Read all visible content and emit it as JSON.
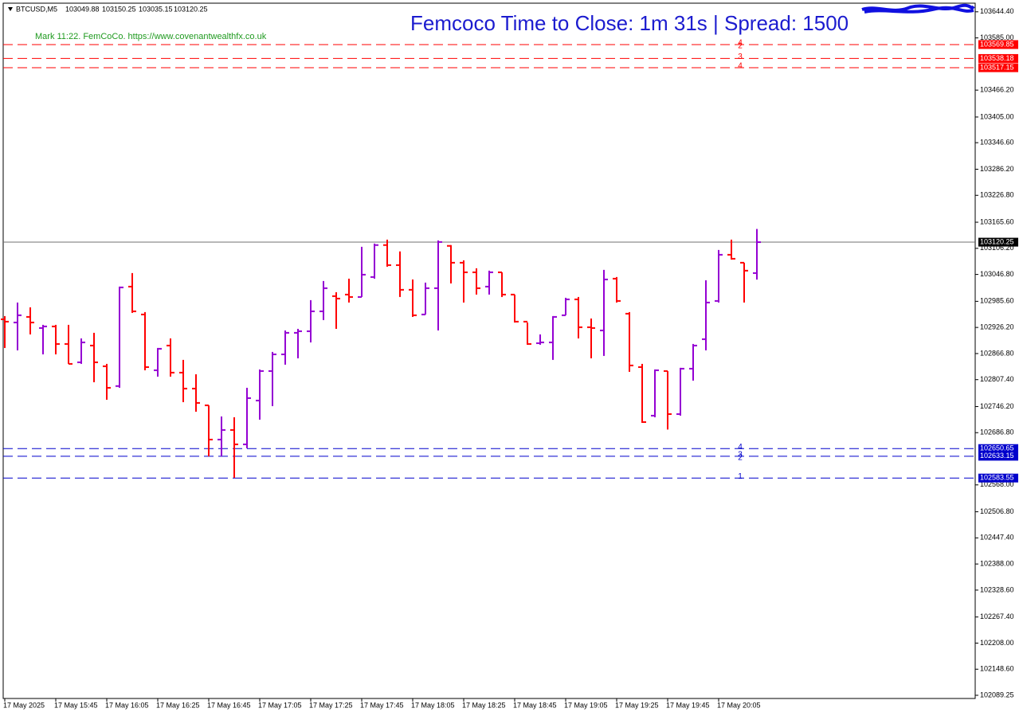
{
  "chart_data": {
    "type": "ohlc",
    "symbol": "BTCUSD,M5",
    "title": "Femcoco Time to Close: 1m 31s | Spread: 1500",
    "annotation": "Mark 11:22. FemCoCo. https://www.covenantwealthfx.co.uk",
    "up_color": "#9400d3",
    "down_color": "#ff0000",
    "categories": [
      "17 May 2025",
      null,
      null,
      null,
      "17 May 15:45",
      null,
      null,
      null,
      "17 May 16:05",
      null,
      null,
      null,
      "17 May 16:25",
      null,
      null,
      null,
      "17 May 16:45",
      null,
      null,
      null,
      "17 May 17:05",
      null,
      null,
      null,
      "17 May 17:25",
      null,
      null,
      null,
      "17 May 17:45",
      null,
      null,
      null,
      "17 May 18:05",
      null,
      null,
      null,
      "17 May 18:25",
      null,
      null,
      null,
      "17 May 18:45",
      null,
      null,
      null,
      "17 May 19:05",
      null,
      null,
      null,
      "17 May 19:25",
      null,
      null,
      null,
      "17 May 19:45",
      null,
      null,
      null,
      "17 May 20:05",
      null,
      null,
      null
    ],
    "open": [
      102944.8,
      102937.5,
      102950.2,
      102924.9,
      102928.5,
      102888.6,
      102846.9,
      102885.0,
      102837.9,
      102792.8,
      103019.1,
      102955.7,
      102828.8,
      102885.0,
      102823.4,
      102787.1,
      102749.0,
      102671.1,
      102692.9,
      102660.2,
      102759.9,
      102827.0,
      102865.0,
      102914.0,
      102917.6,
      102962.9,
      102997.4,
      103001.0,
      102995.5,
      103040.9,
      103113.6,
      103068.0,
      103011.9,
      102955.7,
      103015.5,
      103111.8,
      103073.5,
      103051.7,
      103019.1,
      103051.7,
      103001.0,
      102939.4,
      102890.4,
      102892.2,
      102953.9,
      102990.1,
      102926.7,
      102919.4,
      103037.2,
      102957.5,
      102836.0,
      102725.5,
      102827.0,
      102729.1,
      102832.4,
      102899.5,
      102986.5,
      103091.6,
      103073.5,
      103049.88
    ],
    "high": [
      102952.0,
      102982.9,
      102972.0,
      102932.1,
      102932.1,
      102932.1,
      102901.3,
      102914.0,
      102843.3,
      103019.1,
      103049.9,
      102961.1,
      102879.5,
      102901.3,
      102852.4,
      102819.7,
      102749.0,
      102723.7,
      102721.9,
      102788.9,
      102830.6,
      102870.5,
      102919.4,
      102923.0,
      102988.3,
      103031.8,
      103006.4,
      103037.2,
      103109.7,
      103117.0,
      103126.0,
      103099.2,
      103035.4,
      103028.2,
      103124.2,
      103113.6,
      103078.9,
      103060.8,
      103055.4,
      103051.7,
      103001.0,
      102937.5,
      102910.4,
      102952.0,
      102993.7,
      102995.5,
      102946.6,
      103057.2,
      103040.9,
      102961.1,
      102843.3,
      102830.6,
      102827.0,
      102834.3,
      102888.6,
      103033.6,
      103102.5,
      103126.0,
      103073.5,
      103150.25
    ],
    "low": [
      102879.5,
      102874.1,
      102910.4,
      102865.0,
      102865.0,
      102843.3,
      102843.3,
      102801.6,
      102761.7,
      102788.9,
      102959.3,
      102828.8,
      102814.3,
      102814.3,
      102756.3,
      102734.5,
      102633.0,
      102633.0,
      102584.1,
      102651.2,
      102716.4,
      102747.2,
      102841.5,
      102856.0,
      102892.2,
      102943.0,
      102923.0,
      102982.9,
      102995.5,
      103037.2,
      103064.4,
      102995.5,
      102950.2,
      102955.7,
      102919.4,
      103026.4,
      102982.9,
      103001.0,
      103001.0,
      102995.5,
      102937.5,
      102886.8,
      102886.8,
      102852.4,
      102953.9,
      102901.3,
      102856.0,
      102861.4,
      102982.9,
      102825.2,
      102709.1,
      102721.9,
      102693.9,
      102725.5,
      102805.2,
      102874.1,
      102982.9,
      103080.7,
      102982.9,
      103035.15
    ],
    "close": [
      102939.4,
      102953.9,
      102937.5,
      102928.5,
      102888.6,
      102843.3,
      102892.2,
      102846.9,
      102788.9,
      103017.3,
      102962.9,
      102836.0,
      102877.7,
      102823.4,
      102787.1,
      102754.5,
      102671.1,
      102692.9,
      102660.2,
      102765.4,
      102827.0,
      102865.0,
      102914.0,
      102917.6,
      102962.9,
      103015.5,
      102991.9,
      102995.5,
      103046.3,
      103113.6,
      103068.0,
      103011.9,
      102953.9,
      103015.5,
      103120.6,
      103073.5,
      103051.7,
      103015.5,
      103051.7,
      103001.0,
      102939.4,
      102888.6,
      102892.2,
      102950.2,
      102990.1,
      102926.7,
      102924.9,
      103035.4,
      102986.5,
      102839.7,
      102710.9,
      102828.8,
      102729.1,
      102832.4,
      102885.0,
      102982.9,
      103091.6,
      103082.5,
      103055.4,
      103120.25
    ],
    "ylim": [
      102082,
      103664
    ],
    "yticks": [
      {
        "value": 103644.4,
        "label": "103644.40"
      },
      {
        "value": 103585,
        "label": "103585.00"
      },
      {
        "value": 103466.2,
        "label": "103466.20"
      },
      {
        "value": 103405,
        "label": "103405.00"
      },
      {
        "value": 103346.6,
        "label": "103346.60"
      },
      {
        "value": 103286.2,
        "label": "103286.20"
      },
      {
        "value": 103226.8,
        "label": "103226.80"
      },
      {
        "value": 103165.6,
        "label": "103165.60"
      },
      {
        "value": 103106.2,
        "label": "103106.20"
      },
      {
        "value": 103046.8,
        "label": "103046.80"
      },
      {
        "value": 102985.6,
        "label": "102985.60"
      },
      {
        "value": 102926.2,
        "label": "102926.20"
      },
      {
        "value": 102866.8,
        "label": "102866.80"
      },
      {
        "value": 102807.4,
        "label": "102807.40"
      },
      {
        "value": 102746.2,
        "label": "102746.20"
      },
      {
        "value": 102686.8,
        "label": "102686.80"
      },
      {
        "value": 102568,
        "label": "102568.00"
      },
      {
        "value": 102506.8,
        "label": "102506.80"
      },
      {
        "value": 102447.4,
        "label": "102447.40"
      },
      {
        "value": 102388,
        "label": "102388.00"
      },
      {
        "value": 102328.6,
        "label": "102328.60"
      },
      {
        "value": 102267.4,
        "label": "102267.40"
      },
      {
        "value": 102208,
        "label": "102208.00"
      },
      {
        "value": 102148.6,
        "label": "102148.60"
      },
      {
        "value": 102089.25,
        "label": "102089.25"
      }
    ],
    "levels": [
      {
        "value": 103569.85,
        "tags": [
          "4",
          "2"
        ],
        "color": "#ff0000"
      },
      {
        "value": 103538.18,
        "tags": [
          "3"
        ],
        "color": "#ff0000"
      },
      {
        "value": 103517.15,
        "tags": [
          "4"
        ],
        "color": "#ff0000"
      },
      {
        "value": 102650.65,
        "tags": [
          "4"
        ],
        "color": "#0000cc"
      },
      {
        "value": 102633.15,
        "tags": [
          "3",
          "2"
        ],
        "color": "#0000cc"
      },
      {
        "value": 102583.55,
        "tags": [
          "1"
        ],
        "color": "#0000cc"
      }
    ]
  }
}
